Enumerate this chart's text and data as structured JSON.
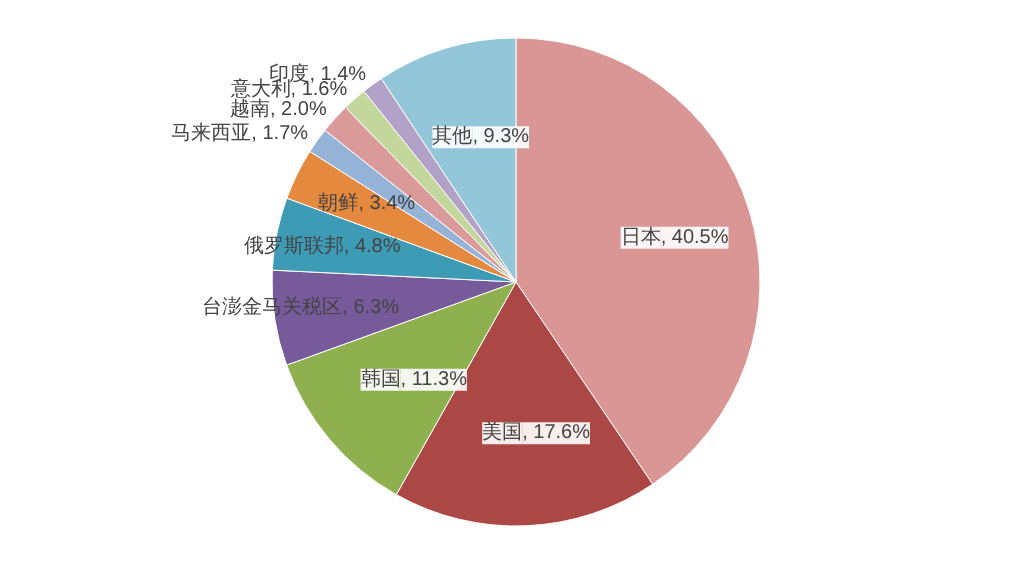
{
  "chart_data": {
    "type": "pie",
    "categories": [
      "日本",
      "美国",
      "韩国",
      "台澎金马关税区",
      "俄罗斯联邦",
      "朝鲜",
      "马来西亚",
      "越南",
      "意大利",
      "印度",
      "其他"
    ],
    "values": [
      40.5,
      17.6,
      11.3,
      6.3,
      4.8,
      3.4,
      1.7,
      2.0,
      1.6,
      1.4,
      9.3
    ],
    "colors": [
      "#d99694",
      "#ab4744",
      "#8fb04f",
      "#775a9a",
      "#3e9bb5",
      "#e4893e",
      "#95b3d7",
      "#da9a9a",
      "#c3d69b",
      "#b3a2c7",
      "#93c6d8"
    ],
    "value_labels": [
      ", 40.5%",
      ", 17.6%",
      ", 11.3%",
      ", 6.3%",
      ", 4.8%",
      ", 3.4%",
      ", 1.7%",
      ", 2.0%",
      ", 1.6%",
      ", 1.4%",
      ", 9.3%"
    ]
  }
}
